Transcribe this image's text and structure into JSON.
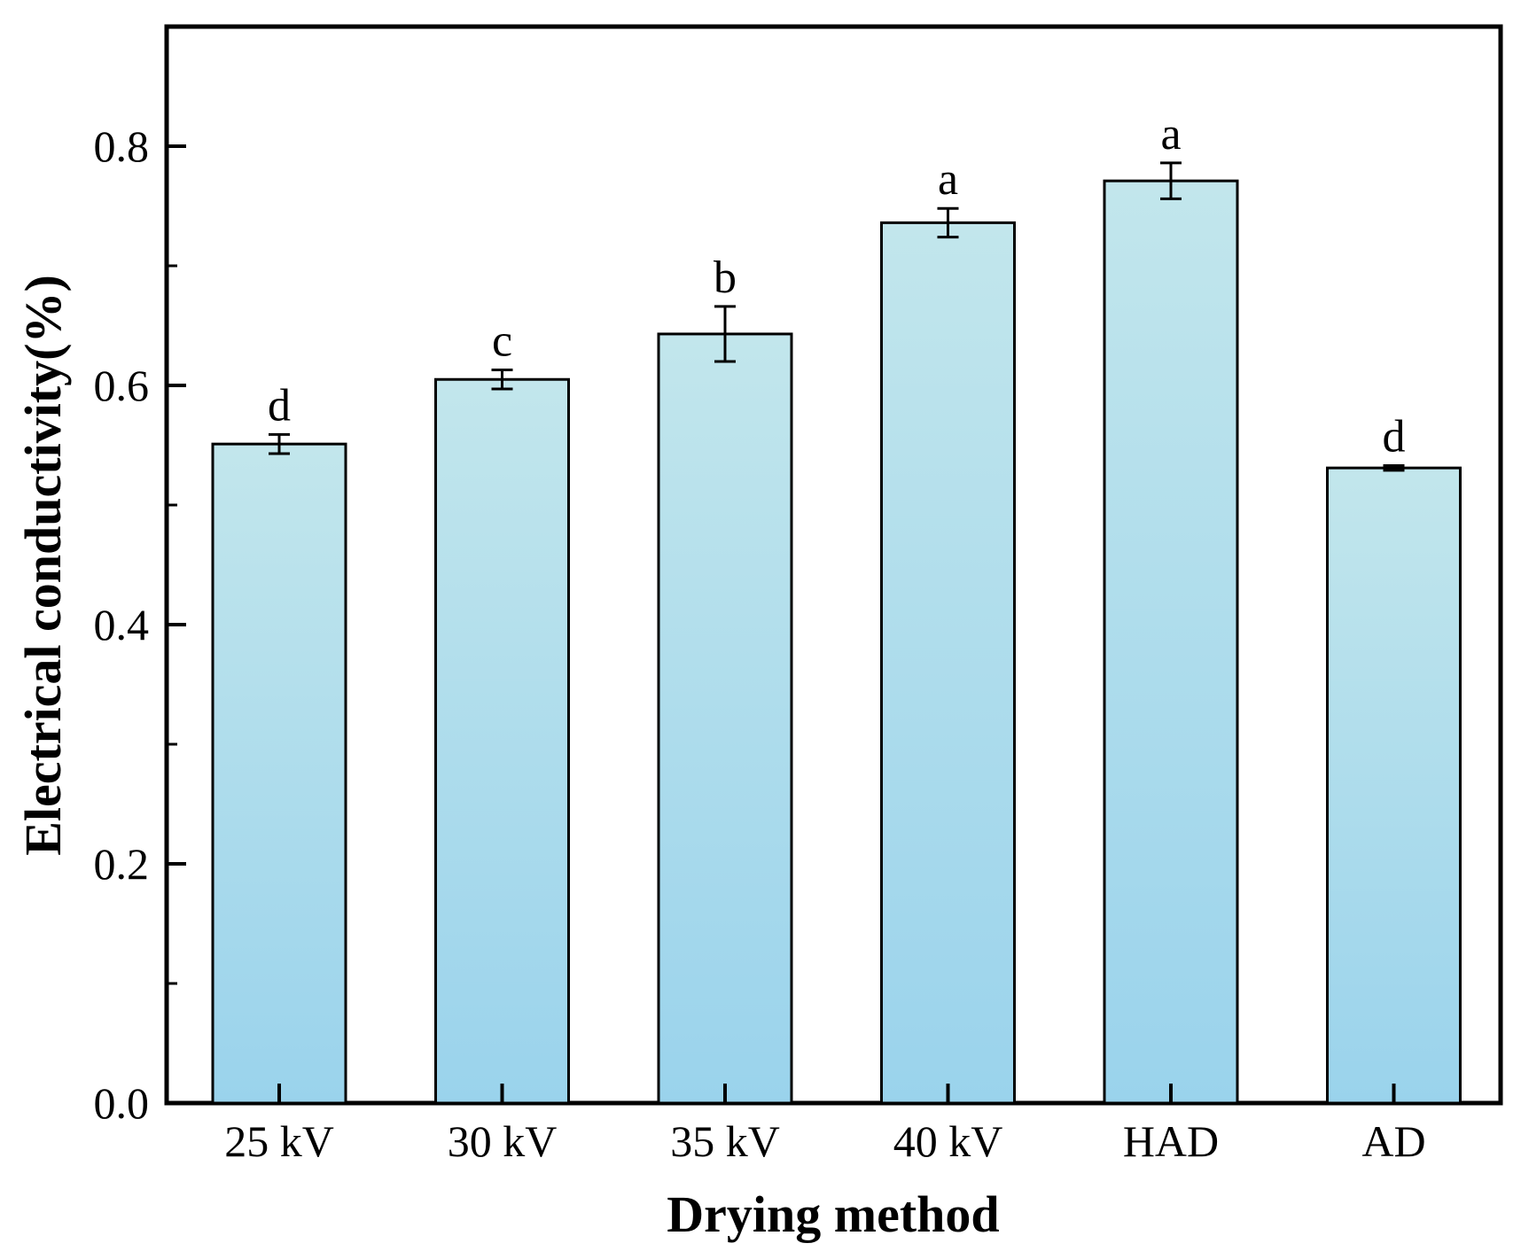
{
  "chart_data": {
    "type": "bar",
    "title": "",
    "xlabel": "Drying method",
    "ylabel": "Electrical conductivity(%)",
    "categories": [
      "25 kV",
      "30 kV",
      "35 kV",
      "40 kV",
      "HAD",
      "AD"
    ],
    "values": [
      0.551,
      0.605,
      0.643,
      0.736,
      0.771,
      0.531
    ],
    "errors": [
      0.008,
      0.008,
      0.023,
      0.012,
      0.015,
      0.002
    ],
    "significance_labels": [
      "d",
      "c",
      "b",
      "a",
      "a",
      "d"
    ],
    "ylim": [
      0,
      0.9
    ],
    "yticks": [
      0.0,
      0.2,
      0.4,
      0.6,
      0.8
    ],
    "ytick_labels": [
      "0.0",
      "0.2",
      "0.4",
      "0.6",
      "0.8"
    ],
    "grid": false,
    "legend": "none"
  },
  "colors": {
    "bar_top": "#c2e6ec",
    "bar_bottom": "#9ad3ec",
    "outline": "#000000"
  }
}
